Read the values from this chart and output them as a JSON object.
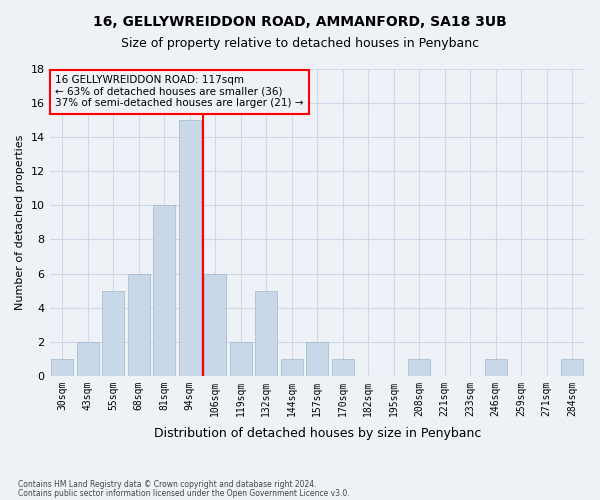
{
  "title1": "16, GELLYWREIDDON ROAD, AMMANFORD, SA18 3UB",
  "title2": "Size of property relative to detached houses in Penybanc",
  "xlabel": "Distribution of detached houses by size in Penybanc",
  "ylabel": "Number of detached properties",
  "categories": [
    "30sqm",
    "43sqm",
    "55sqm",
    "68sqm",
    "81sqm",
    "94sqm",
    "106sqm",
    "119sqm",
    "132sqm",
    "144sqm",
    "157sqm",
    "170sqm",
    "182sqm",
    "195sqm",
    "208sqm",
    "221sqm",
    "233sqm",
    "246sqm",
    "259sqm",
    "271sqm",
    "284sqm"
  ],
  "values": [
    1,
    2,
    5,
    6,
    10,
    15,
    6,
    2,
    5,
    1,
    2,
    1,
    0,
    0,
    1,
    0,
    0,
    1,
    0,
    0,
    1
  ],
  "bar_color": "#c8d8e8",
  "bar_edgecolor": "#a0b8cc",
  "grid_color": "#d0d8e8",
  "background_color": "#eef2f7",
  "vline_x": 5.5,
  "vline_color": "red",
  "annotation_text": "16 GELLYWREIDDON ROAD: 117sqm\n← 63% of detached houses are smaller (36)\n37% of semi-detached houses are larger (21) →",
  "annotation_box_edgecolor": "red",
  "ylim": [
    0,
    18
  ],
  "yticks": [
    0,
    2,
    4,
    6,
    8,
    10,
    12,
    14,
    16,
    18
  ],
  "footer1": "Contains HM Land Registry data © Crown copyright and database right 2024.",
  "footer2": "Contains public sector information licensed under the Open Government Licence v3.0."
}
